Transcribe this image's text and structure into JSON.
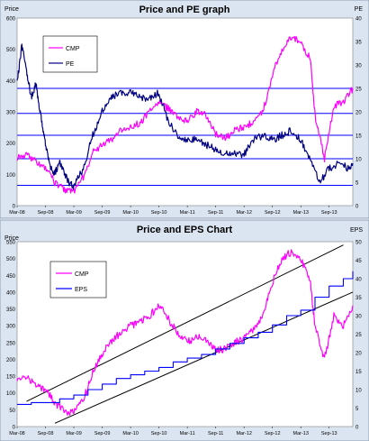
{
  "chart_data": [
    {
      "type": "line",
      "title": "Price and PE graph",
      "ylabel": "Price",
      "y2label": "PE",
      "ylim": [
        0,
        600
      ],
      "y2lim": [
        0,
        40
      ],
      "yticks": [
        "0",
        "100",
        "200",
        "300",
        "400",
        "500",
        "600"
      ],
      "y2ticks": [
        "0",
        "5",
        "10",
        "15",
        "20",
        "25",
        "30",
        "35",
        "40"
      ],
      "x_range": [
        "2008-03",
        "2014-02"
      ],
      "xticks": [
        "Mar-08",
        "Sep-08",
        "Mar-09",
        "Sep-09",
        "Mar-10",
        "Sep-10",
        "Mar-11",
        "Sep-11",
        "Mar-12",
        "Sep-12",
        "Mar-13",
        "Sep-13"
      ],
      "grid": false,
      "legend_position": "top-left",
      "series": [
        {
          "name": "CMP",
          "color": "#ff00ff",
          "axis": "left",
          "x": [
            "2008-03",
            "2008-05",
            "2008-07",
            "2008-09",
            "2008-11",
            "2009-01",
            "2009-03",
            "2009-05",
            "2009-07",
            "2009-09",
            "2009-11",
            "2010-01",
            "2010-03",
            "2010-05",
            "2010-07",
            "2010-09",
            "2010-11",
            "2011-01",
            "2011-03",
            "2011-05",
            "2011-07",
            "2011-09",
            "2011-11",
            "2012-01",
            "2012-03",
            "2012-05",
            "2012-07",
            "2012-09",
            "2012-11",
            "2013-01",
            "2013-03",
            "2013-05",
            "2013-06",
            "2013-08",
            "2013-10",
            "2013-12",
            "2014-02"
          ],
          "values": [
            155,
            165,
            140,
            120,
            75,
            50,
            45,
            90,
            170,
            195,
            210,
            240,
            250,
            265,
            300,
            330,
            310,
            280,
            270,
            300,
            290,
            230,
            215,
            240,
            250,
            270,
            300,
            420,
            500,
            540,
            520,
            470,
            290,
            150,
            320,
            330,
            375
          ]
        },
        {
          "name": "PE",
          "color": "#000080",
          "axis": "right",
          "x": [
            "2008-03",
            "2008-04",
            "2008-05",
            "2008-06",
            "2008-07",
            "2008-08",
            "2008-09",
            "2008-10",
            "2008-11",
            "2008-12",
            "2009-01",
            "2009-02",
            "2009-03",
            "2009-05",
            "2009-07",
            "2009-09",
            "2009-11",
            "2010-01",
            "2010-03",
            "2010-05",
            "2010-07",
            "2010-09",
            "2010-11",
            "2011-01",
            "2011-03",
            "2011-05",
            "2011-07",
            "2011-09",
            "2011-11",
            "2012-01",
            "2012-03",
            "2012-05",
            "2012-07",
            "2012-09",
            "2012-11",
            "2013-01",
            "2013-03",
            "2013-05",
            "2013-07",
            "2013-09",
            "2013-11",
            "2014-01",
            "2014-02"
          ],
          "values": [
            26,
            34,
            29,
            23,
            26,
            19,
            13,
            8,
            7,
            9,
            7,
            5,
            4,
            8,
            15,
            20,
            23,
            24,
            24,
            23,
            23,
            24,
            18,
            15,
            14,
            14,
            13,
            12,
            11,
            11,
            11,
            14,
            15,
            14,
            15,
            16,
            14,
            10,
            5,
            8,
            9,
            8,
            9
          ]
        }
      ],
      "reference_lines_price": [
        375,
        295,
        225,
        150,
        65
      ]
    },
    {
      "type": "line",
      "title": "Price and EPS Chart",
      "ylabel": "Price",
      "y2label": "EPS",
      "ylim": [
        0,
        550
      ],
      "y2lim": [
        0,
        50
      ],
      "yticks": [
        "0",
        "50",
        "100",
        "150",
        "200",
        "250",
        "300",
        "350",
        "400",
        "450",
        "500",
        "550"
      ],
      "y2ticks": [
        "0",
        "5",
        "10",
        "15",
        "20",
        "25",
        "30",
        "35",
        "40",
        "45",
        "50"
      ],
      "x_range": [
        "2008-03",
        "2014-02"
      ],
      "xticks": [
        "Mar-08",
        "Sep-08",
        "Mar-09",
        "Sep-09",
        "Mar-10",
        "Sep-10",
        "Mar-11",
        "Sep-11",
        "Mar-12",
        "Sep-12",
        "Mar-13",
        "Sep-13"
      ],
      "grid": false,
      "legend_position": "top-left",
      "series": [
        {
          "name": "CMP",
          "color": "#ff00ff",
          "axis": "left",
          "x": [
            "2008-03",
            "2008-05",
            "2008-07",
            "2008-09",
            "2008-11",
            "2009-01",
            "2009-03",
            "2009-05",
            "2009-07",
            "2009-09",
            "2009-11",
            "2010-01",
            "2010-03",
            "2010-05",
            "2010-07",
            "2010-09",
            "2010-11",
            "2011-01",
            "2011-03",
            "2011-05",
            "2011-07",
            "2011-09",
            "2011-11",
            "2012-01",
            "2012-03",
            "2012-05",
            "2012-07",
            "2012-09",
            "2012-11",
            "2013-01",
            "2013-03",
            "2013-05",
            "2013-06",
            "2013-08",
            "2013-10",
            "2013-12",
            "2014-02"
          ],
          "values": [
            145,
            150,
            120,
            110,
            70,
            45,
            40,
            80,
            160,
            215,
            255,
            280,
            300,
            310,
            330,
            360,
            320,
            280,
            250,
            270,
            260,
            230,
            230,
            250,
            260,
            290,
            330,
            430,
            500,
            520,
            500,
            430,
            300,
            200,
            330,
            300,
            360
          ]
        },
        {
          "name": "EPS",
          "color": "#0000ff",
          "axis": "right",
          "x": [
            "2008-03",
            "2008-06",
            "2008-09",
            "2008-12",
            "2009-03",
            "2009-06",
            "2009-09",
            "2009-12",
            "2010-03",
            "2010-06",
            "2010-09",
            "2010-12",
            "2011-03",
            "2011-06",
            "2011-09",
            "2011-12",
            "2012-03",
            "2012-06",
            "2012-09",
            "2012-12",
            "2013-03",
            "2013-06",
            "2013-09",
            "2013-12",
            "2014-02"
          ],
          "values": [
            6,
            6.5,
            6.5,
            7.5,
            8.5,
            10,
            11.5,
            13,
            14,
            15,
            16,
            17.5,
            18.5,
            19.5,
            21,
            22.5,
            24,
            25.5,
            27.5,
            30,
            31.5,
            35,
            38,
            40,
            42
          ]
        }
      ],
      "channel_lines": [
        {
          "x": [
            "2008-05",
            "2013-12"
          ],
          "values": [
            75,
            540
          ]
        },
        {
          "x": [
            "2008-11",
            "2014-02"
          ],
          "values": [
            10,
            400
          ]
        }
      ]
    }
  ]
}
